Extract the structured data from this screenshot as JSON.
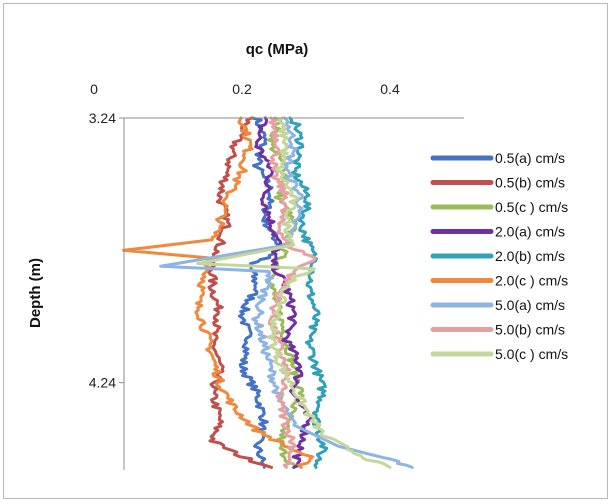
{
  "chart_data": {
    "type": "line",
    "xlabel": "qc (MPa)",
    "ylabel": "Depth (m)",
    "xlim": [
      0,
      0.5
    ],
    "ylim": [
      3.24,
      4.57
    ],
    "x_axis_position": "top",
    "y_axis_inverted": true,
    "xticks": [
      0,
      0.2,
      0.4
    ],
    "xtick_labels": [
      "0",
      "0.2",
      "0.4"
    ],
    "yticks": [
      3.24,
      4.24
    ],
    "ytick_labels": [
      "3.24",
      "4.24"
    ],
    "grid": false,
    "legend_position": "right",
    "series": [
      {
        "name": "0.5(a) cm/s",
        "color": "#4472C4",
        "points": [
          [
            0.22,
            3.24
          ],
          [
            0.23,
            3.32
          ],
          [
            0.22,
            3.42
          ],
          [
            0.24,
            3.52
          ],
          [
            0.23,
            3.62
          ],
          [
            0.25,
            3.72
          ],
          [
            0.24,
            3.76
          ],
          [
            0.21,
            3.79
          ],
          [
            0.22,
            3.88
          ],
          [
            0.2,
            3.98
          ],
          [
            0.21,
            4.08
          ],
          [
            0.2,
            4.18
          ],
          [
            0.22,
            4.28
          ],
          [
            0.23,
            4.38
          ],
          [
            0.22,
            4.48
          ],
          [
            0.23,
            4.56
          ]
        ]
      },
      {
        "name": "0.5(b) cm/s",
        "color": "#C0504D",
        "points": [
          [
            0.21,
            3.24
          ],
          [
            0.19,
            3.34
          ],
          [
            0.18,
            3.44
          ],
          [
            0.17,
            3.54
          ],
          [
            0.18,
            3.64
          ],
          [
            0.17,
            3.72
          ],
          [
            0.16,
            3.78
          ],
          [
            0.16,
            3.88
          ],
          [
            0.17,
            3.98
          ],
          [
            0.16,
            4.08
          ],
          [
            0.17,
            4.18
          ],
          [
            0.16,
            4.28
          ],
          [
            0.17,
            4.38
          ],
          [
            0.16,
            4.46
          ],
          [
            0.2,
            4.52
          ],
          [
            0.24,
            4.56
          ]
        ]
      },
      {
        "name": "0.5(c ) cm/s",
        "color": "#9BBB59",
        "points": [
          [
            0.25,
            3.24
          ],
          [
            0.24,
            3.34
          ],
          [
            0.26,
            3.44
          ],
          [
            0.25,
            3.54
          ],
          [
            0.27,
            3.64
          ],
          [
            0.26,
            3.72
          ],
          [
            0.25,
            3.78
          ],
          [
            0.24,
            3.88
          ],
          [
            0.25,
            3.98
          ],
          [
            0.26,
            4.08
          ],
          [
            0.27,
            4.18
          ],
          [
            0.28,
            4.28
          ],
          [
            0.26,
            4.38
          ],
          [
            0.25,
            4.48
          ],
          [
            0.27,
            4.56
          ]
        ]
      },
      {
        "name": "2.0(a) cm/s",
        "color": "#7030A0",
        "points": [
          [
            0.23,
            3.24
          ],
          [
            0.22,
            3.34
          ],
          [
            0.24,
            3.44
          ],
          [
            0.23,
            3.54
          ],
          [
            0.24,
            3.64
          ],
          [
            0.25,
            3.72
          ],
          [
            0.24,
            3.78
          ],
          [
            0.26,
            3.88
          ],
          [
            0.27,
            3.98
          ],
          [
            0.26,
            4.08
          ],
          [
            0.28,
            4.18
          ],
          [
            0.27,
            4.28
          ],
          [
            0.29,
            4.38
          ],
          [
            0.28,
            4.48
          ],
          [
            0.27,
            4.56
          ]
        ]
      },
      {
        "name": "2.0(b) cm/s",
        "color": "#31A0B8",
        "points": [
          [
            0.27,
            3.24
          ],
          [
            0.28,
            3.34
          ],
          [
            0.27,
            3.44
          ],
          [
            0.29,
            3.54
          ],
          [
            0.28,
            3.64
          ],
          [
            0.29,
            3.72
          ],
          [
            0.3,
            3.78
          ],
          [
            0.29,
            3.88
          ],
          [
            0.3,
            3.98
          ],
          [
            0.29,
            4.08
          ],
          [
            0.3,
            4.18
          ],
          [
            0.31,
            4.28
          ],
          [
            0.3,
            4.38
          ],
          [
            0.31,
            4.48
          ],
          [
            0.3,
            4.56
          ]
        ]
      },
      {
        "name": "2.0(c ) cm/s",
        "color": "#F0883E",
        "points": [
          [
            0.2,
            3.24
          ],
          [
            0.21,
            3.34
          ],
          [
            0.2,
            3.44
          ],
          [
            0.18,
            3.54
          ],
          [
            0.17,
            3.64
          ],
          [
            0.16,
            3.7
          ],
          [
            0.04,
            3.74
          ],
          [
            0.16,
            3.77
          ],
          [
            0.15,
            3.84
          ],
          [
            0.14,
            3.94
          ],
          [
            0.15,
            4.04
          ],
          [
            0.16,
            4.14
          ],
          [
            0.17,
            4.24
          ],
          [
            0.19,
            4.34
          ],
          [
            0.22,
            4.42
          ],
          [
            0.26,
            4.48
          ],
          [
            0.29,
            4.52
          ],
          [
            0.28,
            4.56
          ]
        ]
      },
      {
        "name": "5.0(a) cm/s",
        "color": "#8DB4E2",
        "points": [
          [
            0.26,
            3.24
          ],
          [
            0.27,
            3.34
          ],
          [
            0.26,
            3.44
          ],
          [
            0.28,
            3.54
          ],
          [
            0.27,
            3.64
          ],
          [
            0.26,
            3.72
          ],
          [
            0.09,
            3.8
          ],
          [
            0.24,
            3.82
          ],
          [
            0.23,
            3.9
          ],
          [
            0.22,
            4.0
          ],
          [
            0.23,
            4.1
          ],
          [
            0.24,
            4.2
          ],
          [
            0.25,
            4.3
          ],
          [
            0.27,
            4.4
          ],
          [
            0.33,
            4.48
          ],
          [
            0.4,
            4.53
          ],
          [
            0.43,
            4.56
          ]
        ]
      },
      {
        "name": "5.0(b) cm/s",
        "color": "#E6A0A0",
        "points": [
          [
            0.24,
            3.24
          ],
          [
            0.25,
            3.34
          ],
          [
            0.24,
            3.44
          ],
          [
            0.26,
            3.54
          ],
          [
            0.25,
            3.64
          ],
          [
            0.26,
            3.72
          ],
          [
            0.3,
            3.77
          ],
          [
            0.27,
            3.82
          ],
          [
            0.25,
            3.9
          ],
          [
            0.24,
            4.0
          ],
          [
            0.25,
            4.1
          ],
          [
            0.26,
            4.2
          ],
          [
            0.25,
            4.3
          ],
          [
            0.26,
            4.4
          ],
          [
            0.27,
            4.48
          ],
          [
            0.26,
            4.56
          ]
        ]
      },
      {
        "name": "5.0(c ) cm/s",
        "color": "#C4D79B",
        "points": [
          [
            0.25,
            3.24
          ],
          [
            0.26,
            3.34
          ],
          [
            0.25,
            3.44
          ],
          [
            0.27,
            3.54
          ],
          [
            0.26,
            3.64
          ],
          [
            0.27,
            3.72
          ],
          [
            0.14,
            3.79
          ],
          [
            0.3,
            3.81
          ],
          [
            0.26,
            3.86
          ],
          [
            0.25,
            3.96
          ],
          [
            0.24,
            4.06
          ],
          [
            0.25,
            4.16
          ],
          [
            0.27,
            4.26
          ],
          [
            0.29,
            4.36
          ],
          [
            0.31,
            4.44
          ],
          [
            0.35,
            4.5
          ],
          [
            0.38,
            4.54
          ],
          [
            0.4,
            4.56
          ]
        ]
      }
    ]
  }
}
